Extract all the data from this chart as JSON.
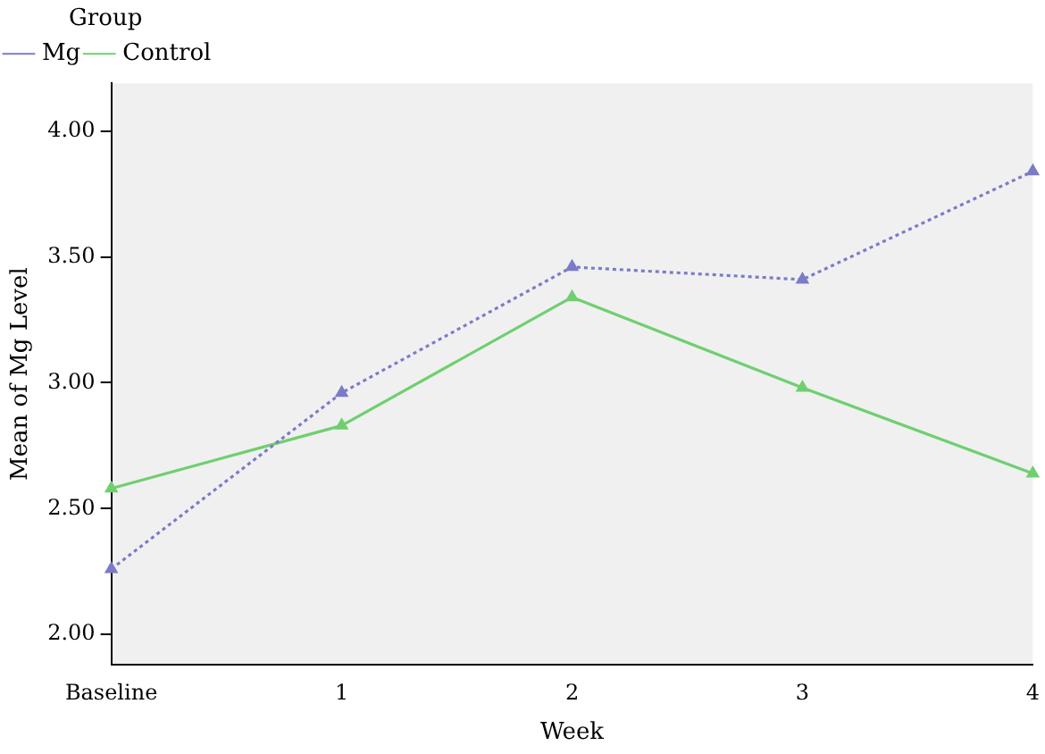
{
  "chart_data": {
    "type": "line",
    "xlabel": "Week",
    "ylabel": "Mean of Mg Level",
    "legend_title": "Group",
    "categories": [
      "Baseline",
      "1",
      "2",
      "3",
      "4"
    ],
    "series": [
      {
        "name": "Mg",
        "color": "#7b7bc8",
        "values": [
          2.26,
          2.96,
          3.46,
          3.41,
          3.84
        ],
        "line_style": "dotted"
      },
      {
        "name": "Control",
        "color": "#6fcf6f",
        "values": [
          2.58,
          2.83,
          3.34,
          2.98,
          2.64
        ],
        "line_style": "solid"
      }
    ],
    "ylim": [
      1.88,
      4.19
    ],
    "yticks": [
      {
        "value": 2,
        "label": "2.00"
      },
      {
        "value": 2.5,
        "label": "2.50"
      },
      {
        "value": 3,
        "label": "3.00"
      },
      {
        "value": 3.5,
        "label": "3.50"
      },
      {
        "value": 4,
        "label": "4.00"
      }
    ],
    "marker": "triangle",
    "grid": false,
    "legend": "top left"
  }
}
